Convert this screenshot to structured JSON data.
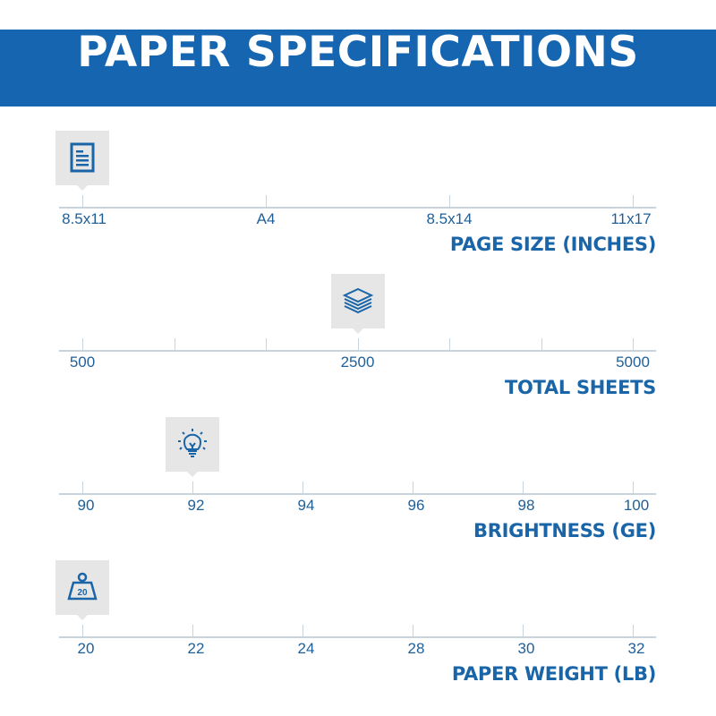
{
  "header": {
    "title": "PAPER SPECIFICATIONS",
    "background": "#1565b0"
  },
  "accent_color": "#1a64a8",
  "scales": [
    {
      "title": "PAGE SIZE (INCHES)",
      "icon": "document-icon",
      "ticks": [
        "8.5x11",
        "A4",
        "8.5x14",
        "11x17"
      ],
      "labeled": [
        0,
        1,
        2,
        3
      ],
      "selected": "8.5x11"
    },
    {
      "title": "TOTAL SHEETS",
      "icon": "paper-stack-icon",
      "ticks": [
        "500",
        "",
        "",
        "2500",
        "",
        "",
        "5000"
      ],
      "selected": "2500"
    },
    {
      "title": "BRIGHTNESS (GE)",
      "icon": "lightbulb-icon",
      "ticks": [
        "90",
        "92",
        "94",
        "96",
        "98",
        "100"
      ],
      "selected": "92"
    },
    {
      "title": "PAPER WEIGHT (LB)",
      "icon": "weight-icon",
      "icon_text": "20",
      "ticks": [
        "20",
        "22",
        "24",
        "28",
        "30",
        "32"
      ],
      "selected": "20"
    }
  ]
}
